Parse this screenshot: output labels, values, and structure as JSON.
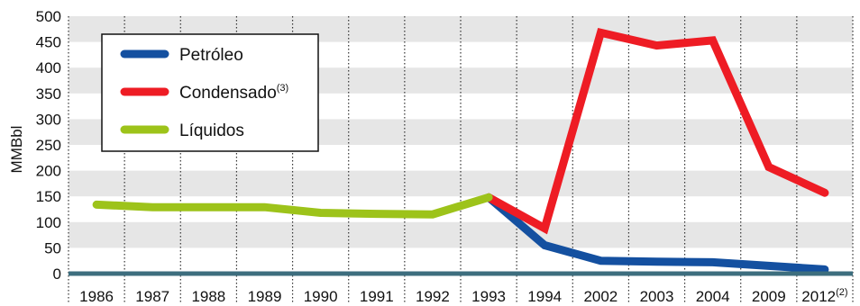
{
  "chart_data": {
    "type": "line",
    "ylabel": "MMBbl",
    "xlabel": "",
    "ylim": [
      0,
      500
    ],
    "yticks": [
      0,
      50,
      100,
      150,
      200,
      250,
      300,
      350,
      400,
      450,
      500
    ],
    "categories": [
      "1986",
      "1987",
      "1988",
      "1989",
      "1990",
      "1991",
      "1992",
      "1993",
      "1994",
      "2002",
      "2003",
      "2004",
      "2009",
      "2012"
    ],
    "category_notes": {
      "13": "(2)"
    },
    "grid": "horizontal bands, vertical dotted lines",
    "legend_position": "top-left",
    "series": [
      {
        "name": "Petróleo",
        "color": "#1450a0",
        "values": [
          null,
          null,
          null,
          null,
          null,
          null,
          null,
          148,
          55,
          25,
          23,
          22,
          15,
          8
        ]
      },
      {
        "name": "Condensado",
        "name_note": "(3)",
        "color": "#ee1c24",
        "values": [
          null,
          null,
          null,
          null,
          null,
          null,
          null,
          148,
          88,
          468,
          443,
          453,
          207,
          157
        ]
      },
      {
        "name": "Líquidos",
        "color": "#9dc31a",
        "values": [
          134,
          129,
          129,
          129,
          118,
          116,
          115,
          148,
          null,
          null,
          null,
          null,
          null,
          null
        ]
      }
    ]
  }
}
